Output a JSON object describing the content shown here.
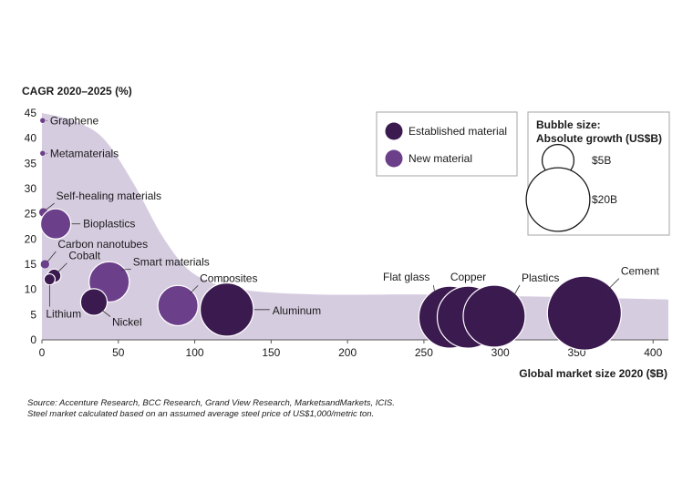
{
  "chart_data": {
    "type": "scatter",
    "ylabel": "CAGR 2020–2025 (%)",
    "xlabel": "Global market size 2020 ($B)",
    "xlim": [
      0,
      410
    ],
    "ylim": [
      0,
      45
    ],
    "xticks": [
      "0",
      "50",
      "100",
      "150",
      "200",
      "250",
      "300",
      "350",
      "400"
    ],
    "yticks": [
      "0",
      "5",
      "10",
      "15",
      "20",
      "25",
      "30",
      "35",
      "40",
      "45"
    ],
    "grid": false,
    "series": [
      {
        "name": "Established material",
        "color": "#3b1a4f"
      },
      {
        "name": "New material",
        "color": "#6b3f8a"
      }
    ],
    "points": [
      {
        "label": "Graphene",
        "x": 0.5,
        "y": 43.5,
        "growth": 0.1,
        "kind": "new"
      },
      {
        "label": "Metamaterials",
        "x": 0.5,
        "y": 37,
        "growth": 0.1,
        "kind": "new"
      },
      {
        "label": "Self-healing materials",
        "x": 1,
        "y": 25.3,
        "growth": 0.4,
        "kind": "new"
      },
      {
        "label": "Bioplastics",
        "x": 9,
        "y": 23,
        "growth": 4.5,
        "kind": "new"
      },
      {
        "label": "Carbon nanotubes",
        "x": 2,
        "y": 15,
        "growth": 0.4,
        "kind": "new"
      },
      {
        "label": "Cobalt",
        "x": 8,
        "y": 12.7,
        "growth": 0.9,
        "kind": "established"
      },
      {
        "label": "Lithium",
        "x": 5,
        "y": 12,
        "growth": 0.6,
        "kind": "established"
      },
      {
        "label": "Smart materials",
        "x": 44,
        "y": 11.5,
        "growth": 8,
        "kind": "new"
      },
      {
        "label": "Nickel",
        "x": 34,
        "y": 7.5,
        "growth": 3.5,
        "kind": "established"
      },
      {
        "label": "Composites",
        "x": 89,
        "y": 6.8,
        "growth": 8,
        "kind": "new"
      },
      {
        "label": "Aluminum",
        "x": 121,
        "y": 6,
        "growth": 14,
        "kind": "established"
      },
      {
        "label": "Flat glass",
        "x": 267,
        "y": 4.5,
        "growth": 19,
        "kind": "established"
      },
      {
        "label": "Copper",
        "x": 279,
        "y": 4.5,
        "growth": 19,
        "kind": "established"
      },
      {
        "label": "Plastics",
        "x": 296,
        "y": 4.7,
        "growth": 19,
        "kind": "established"
      },
      {
        "label": "Cement",
        "x": 355,
        "y": 5.3,
        "growth": 27,
        "kind": "established"
      }
    ],
    "area_curve": [
      {
        "x": 0,
        "y": 45
      },
      {
        "x": 20,
        "y": 43.5
      },
      {
        "x": 40,
        "y": 40
      },
      {
        "x": 60,
        "y": 31
      },
      {
        "x": 80,
        "y": 20
      },
      {
        "x": 100,
        "y": 13
      },
      {
        "x": 130,
        "y": 10
      },
      {
        "x": 180,
        "y": 9
      },
      {
        "x": 250,
        "y": 9
      },
      {
        "x": 320,
        "y": 8.6
      },
      {
        "x": 410,
        "y": 8
      }
    ],
    "size_legend": {
      "title_line1": "Bubble size:",
      "title_line2": "Absolute growth (US$B)",
      "items": [
        {
          "label": "$5B",
          "growth": 5
        },
        {
          "label": "$20B",
          "growth": 20
        }
      ]
    },
    "colors": {
      "area": "#d6cce0",
      "established": "#3b1a4f",
      "new": "#6b3f8a",
      "legend_box": "#b3b3b3"
    }
  },
  "source_line1": "Source: Accenture Research, BCC Research, Grand View Research, MarketsandMarkets, ICIS.",
  "source_line2": "Steel market calculated based on an assumed average steel price of US$1,000/metric ton."
}
